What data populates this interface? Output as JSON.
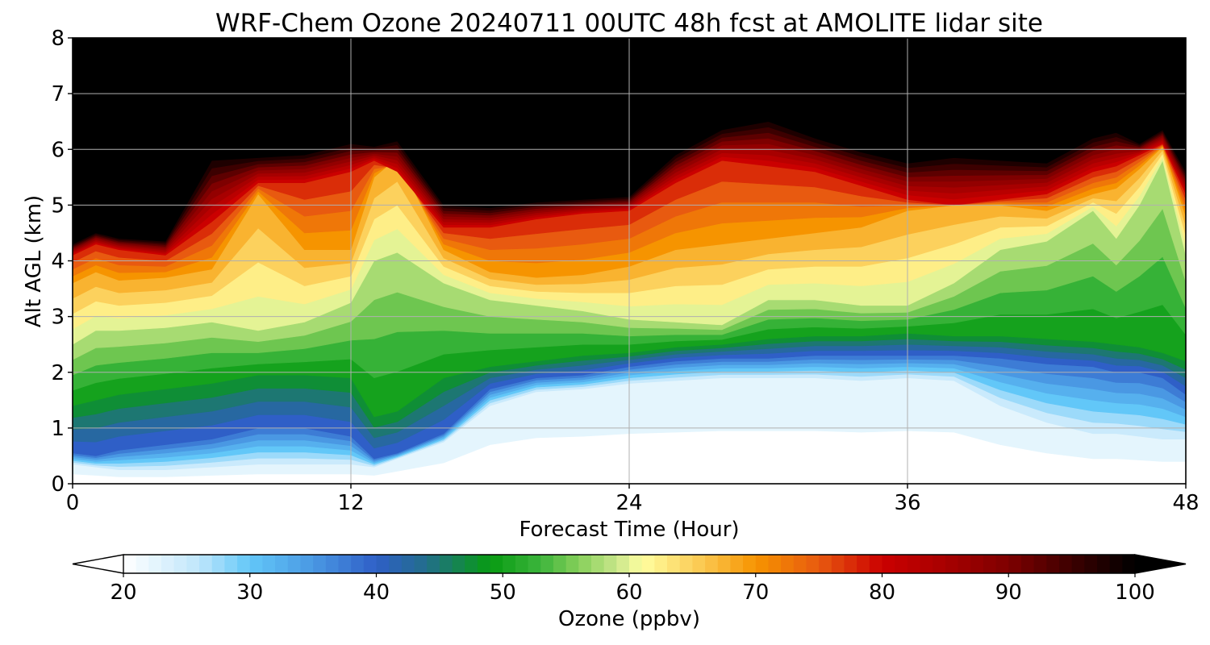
{
  "chart_data": {
    "type": "heatmap",
    "title": "WRF-Chem Ozone  20240711 00UTC 48h fcst at AMOLITE lidar site",
    "xlabel": "Forecast Time (Hour)",
    "ylabel": "Alt AGL (km)",
    "xlim": [
      0,
      48
    ],
    "ylim": [
      0,
      8
    ],
    "xticks": [
      0,
      12,
      24,
      36,
      48
    ],
    "yticks": [
      0,
      1,
      2,
      3,
      4,
      5,
      6,
      7,
      8
    ],
    "grid": true,
    "x": [
      0,
      1,
      2,
      4,
      6,
      8,
      10,
      12,
      13,
      14,
      16,
      18,
      20,
      22,
      24,
      26,
      28,
      30,
      32,
      34,
      36,
      38,
      40,
      42,
      44,
      45,
      46,
      47,
      48
    ],
    "boundaries": {
      "units": "km",
      "b25": [
        0.35,
        0.3,
        0.25,
        0.25,
        0.3,
        0.35,
        0.35,
        0.35,
        0.3,
        0.45,
        0.75,
        1.4,
        1.65,
        1.7,
        1.8,
        1.85,
        1.9,
        1.9,
        1.9,
        1.85,
        1.9,
        1.85,
        1.4,
        1.1,
        0.9,
        0.9,
        0.85,
        0.8,
        0.8
      ],
      "b40": [
        0.55,
        0.5,
        0.6,
        0.7,
        0.8,
        1.0,
        1.0,
        0.85,
        0.45,
        0.55,
        0.9,
        1.7,
        1.9,
        1.95,
        2.1,
        2.2,
        2.25,
        2.25,
        2.3,
        2.3,
        2.3,
        2.3,
        2.25,
        2.15,
        2.1,
        2.0,
        2.0,
        1.9,
        1.6
      ],
      "b50": [
        1.4,
        1.5,
        1.6,
        1.7,
        1.8,
        1.95,
        1.95,
        1.9,
        1.2,
        1.3,
        1.9,
        2.1,
        2.2,
        2.3,
        2.35,
        2.45,
        2.5,
        2.6,
        2.65,
        2.65,
        2.7,
        2.65,
        2.65,
        2.6,
        2.55,
        2.5,
        2.45,
        2.35,
        2.2
      ],
      "b60": [
        2.5,
        2.75,
        2.75,
        2.8,
        2.9,
        2.75,
        2.9,
        3.25,
        4.0,
        4.15,
        3.6,
        3.3,
        3.2,
        3.1,
        2.95,
        2.9,
        2.85,
        3.3,
        3.3,
        3.2,
        3.2,
        3.6,
        4.2,
        4.35,
        4.9,
        4.4,
        5.0,
        5.8,
        4.1
      ],
      "b70": [
        3.6,
        3.8,
        3.65,
        3.7,
        3.85,
        5.2,
        4.2,
        4.2,
        5.5,
        5.85,
        4.2,
        3.8,
        3.7,
        3.75,
        3.9,
        4.2,
        4.3,
        4.4,
        4.5,
        4.6,
        4.9,
        5.0,
        5.0,
        4.9,
        5.2,
        5.3,
        5.65,
        6.05,
        4.8
      ],
      "b80": [
        4.1,
        4.3,
        4.2,
        4.1,
        4.7,
        5.4,
        5.4,
        5.6,
        5.8,
        5.6,
        4.6,
        4.6,
        4.75,
        4.85,
        4.9,
        5.4,
        5.8,
        5.7,
        5.6,
        5.35,
        5.1,
        5.0,
        5.1,
        5.2,
        5.6,
        5.7,
        5.9,
        6.1,
        5.2
      ],
      "b100": [
        4.3,
        4.5,
        4.4,
        4.35,
        5.8,
        5.85,
        5.9,
        6.1,
        6.05,
        6.15,
        5.0,
        4.95,
        5.05,
        5.1,
        5.15,
        5.9,
        6.35,
        6.5,
        6.2,
        5.95,
        5.75,
        5.85,
        5.8,
        5.75,
        6.2,
        6.3,
        6.1,
        6.35,
        5.6
      ]
    },
    "colorbar": {
      "label": "Ozone  (ppbv)",
      "min": 20,
      "max": 100,
      "ticks": [
        20,
        30,
        40,
        50,
        60,
        70,
        80,
        90,
        100
      ],
      "extend": "both",
      "stops": [
        {
          "value": 20,
          "color": "#ffffff"
        },
        {
          "value": 26,
          "color": "#bfe6fb"
        },
        {
          "value": 30,
          "color": "#62c7f8"
        },
        {
          "value": 35,
          "color": "#4a98e3"
        },
        {
          "value": 40,
          "color": "#2f5fc7"
        },
        {
          "value": 44,
          "color": "#226e8a"
        },
        {
          "value": 49,
          "color": "#079b12"
        },
        {
          "value": 53,
          "color": "#3db53c"
        },
        {
          "value": 56,
          "color": "#86cf5a"
        },
        {
          "value": 59,
          "color": "#c8e68a"
        },
        {
          "value": 61,
          "color": "#ffffa0"
        },
        {
          "value": 66,
          "color": "#fbc54c"
        },
        {
          "value": 70,
          "color": "#f69400"
        },
        {
          "value": 75,
          "color": "#e85a10"
        },
        {
          "value": 80,
          "color": "#cb0000"
        },
        {
          "value": 85,
          "color": "#a70000"
        },
        {
          "value": 90,
          "color": "#7e0000"
        },
        {
          "value": 95,
          "color": "#3c0000"
        },
        {
          "value": 100,
          "color": "#000000"
        }
      ]
    }
  }
}
